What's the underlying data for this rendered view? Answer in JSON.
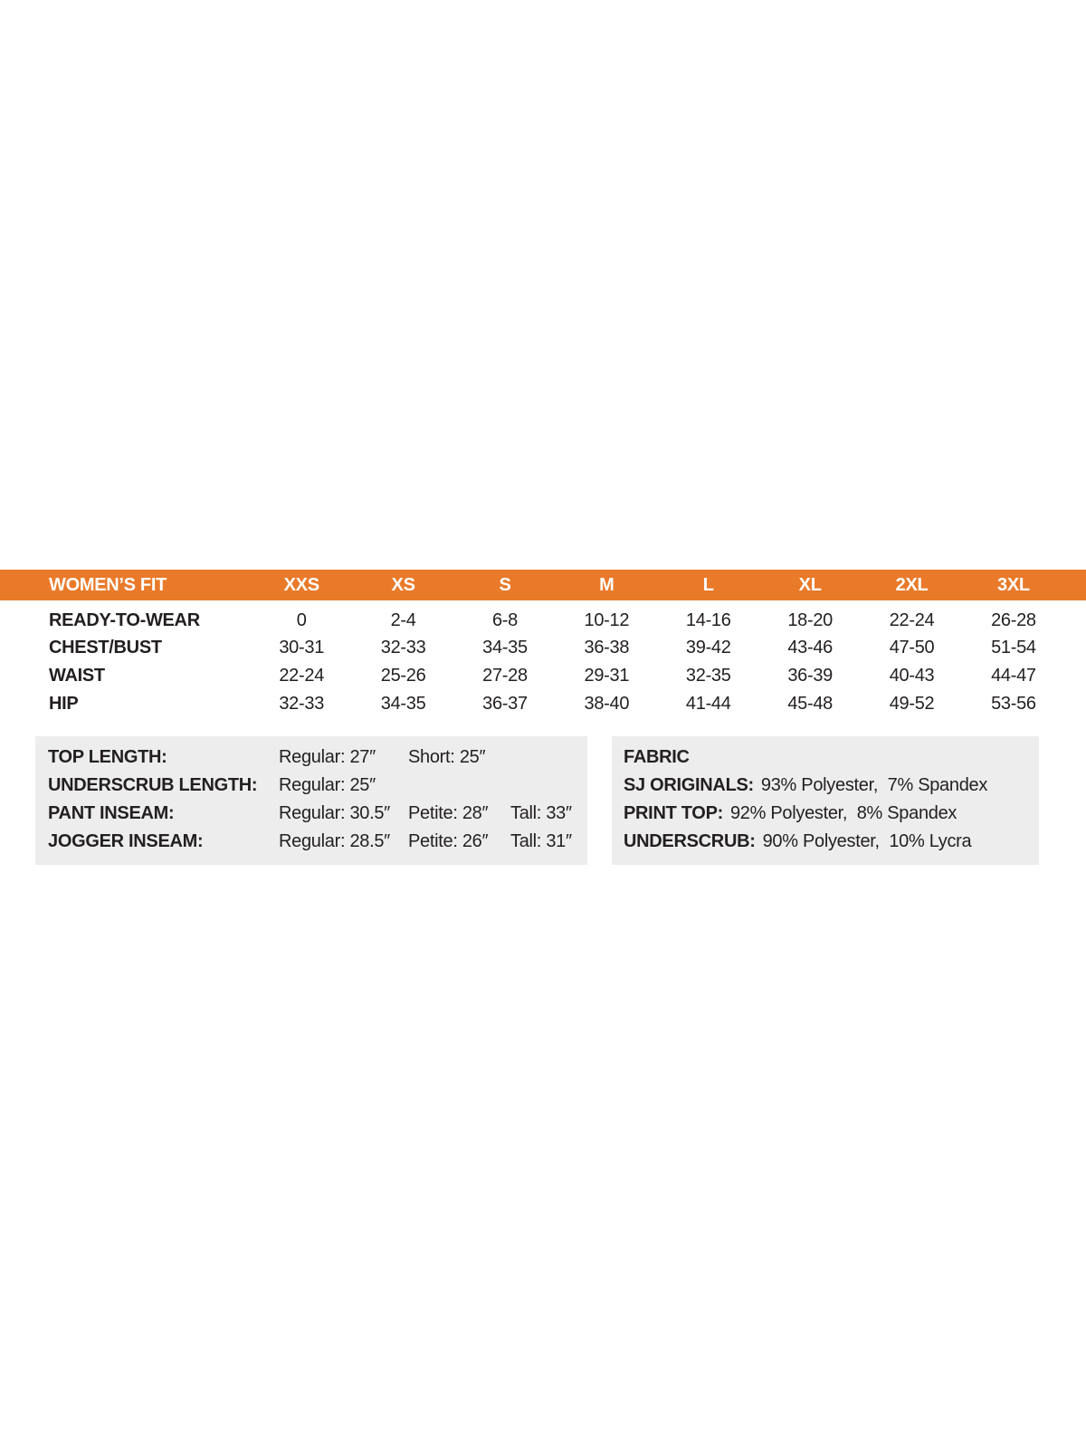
{
  "colors": {
    "accent_orange": "#e97a2a",
    "panel_gray": "#ededed",
    "text_dark": "#231f20",
    "header_text": "#ffffff"
  },
  "size_table": {
    "header_label": "WOMEN’S FIT",
    "sizes": [
      "XXS",
      "XS",
      "S",
      "M",
      "L",
      "XL",
      "2XL",
      "3XL"
    ],
    "rows": [
      {
        "label": "READY-TO-WEAR",
        "values": [
          "0",
          "2-4",
          "6-8",
          "10-12",
          "14-16",
          "18-20",
          "22-24",
          "26-28"
        ]
      },
      {
        "label": "CHEST/BUST",
        "values": [
          "30-31",
          "32-33",
          "34-35",
          "36-38",
          "39-42",
          "43-46",
          "47-50",
          "51-54"
        ]
      },
      {
        "label": "WAIST",
        "values": [
          "22-24",
          "25-26",
          "27-28",
          "29-31",
          "32-35",
          "36-39",
          "40-43",
          "44-47"
        ]
      },
      {
        "label": "HIP",
        "values": [
          "32-33",
          "34-35",
          "36-37",
          "38-40",
          "41-44",
          "45-48",
          "49-52",
          "53-56"
        ]
      }
    ]
  },
  "length_box": {
    "rows": [
      {
        "label": "TOP LENGTH:",
        "v1": "Regular: 27″",
        "v2": "Short: 25″",
        "v3": ""
      },
      {
        "label": "UNDERSCRUB LENGTH:",
        "v1": "Regular: 25″",
        "v2": "",
        "v3": ""
      },
      {
        "label": "PANT INSEAM:",
        "v1": "Regular: 30.5″",
        "v2": "Petite: 28″",
        "v3": "Tall: 33″"
      },
      {
        "label": "JOGGER INSEAM:",
        "v1": "Regular: 28.5″",
        "v2": "Petite: 26″",
        "v3": "Tall: 31″"
      }
    ]
  },
  "fabric_box": {
    "title": "FABRIC",
    "rows": [
      {
        "label": "SJ ORIGINALS:",
        "value": "93% Polyester,  7% Spandex"
      },
      {
        "label": "PRINT TOP:",
        "value": "92% Polyester,  8% Spandex"
      },
      {
        "label": "UNDERSCRUB:",
        "value": "90% Polyester,  10% Lycra"
      }
    ]
  }
}
